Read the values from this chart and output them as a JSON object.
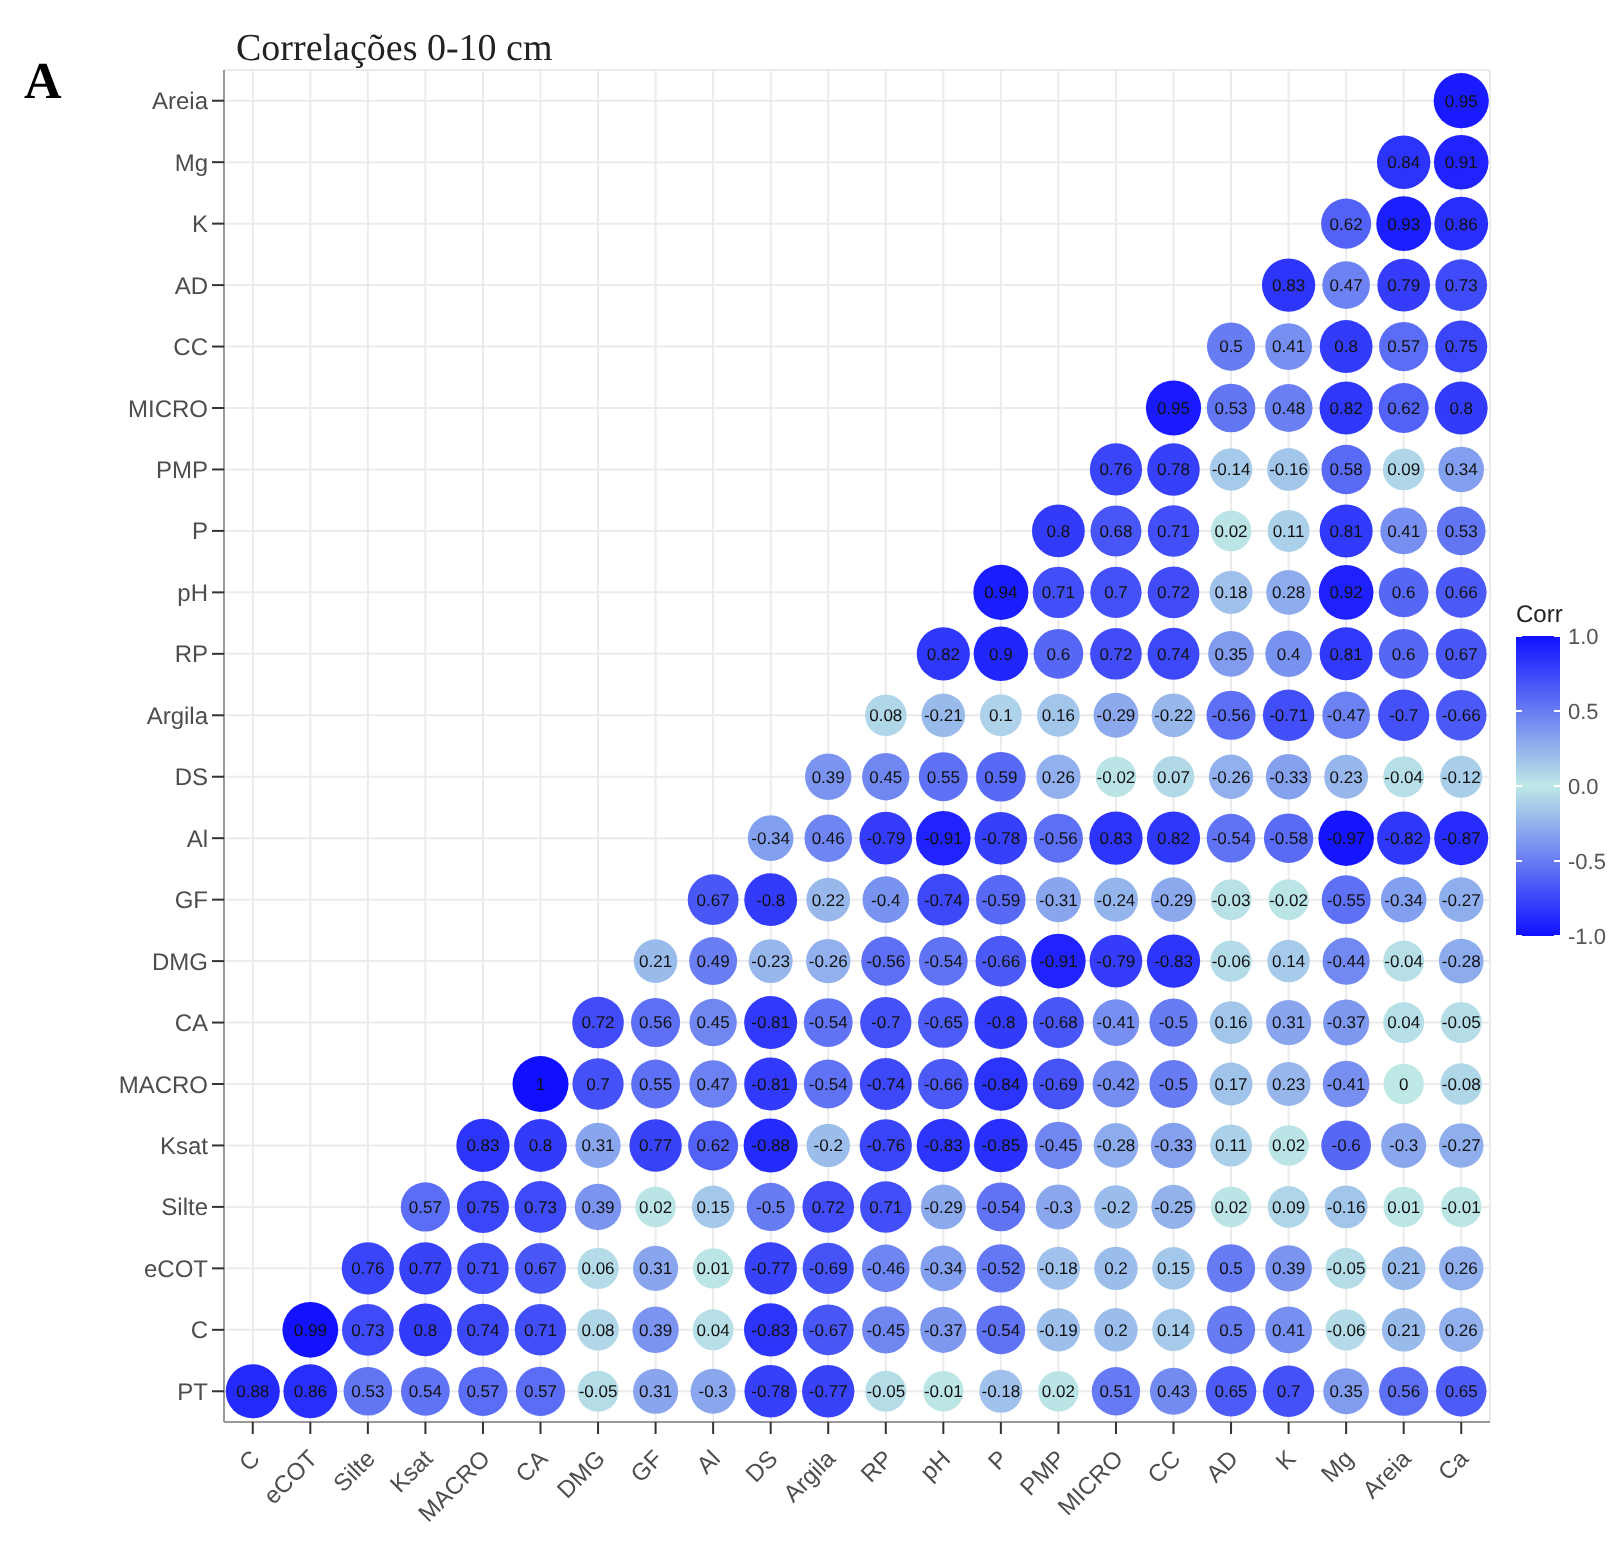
{
  "chart_data": {
    "type": "heatmap",
    "title": "Correlações 0-10 cm",
    "annotations": [
      "A"
    ],
    "clabel": "Corr",
    "grid": true,
    "data_labels": true,
    "categories": [
      "C",
      "eCOT",
      "Silte",
      "Ksat",
      "MACRO",
      "CA",
      "DMG",
      "GF",
      "Al",
      "DS",
      "Argila",
      "RP",
      "pH",
      "P",
      "PMP",
      "MICRO",
      "CC",
      "AD",
      "K",
      "Mg",
      "Areia",
      "Ca"
    ],
    "y_categories": [
      "Areia",
      "Mg",
      "K",
      "AD",
      "CC",
      "MICRO",
      "PMP",
      "P",
      "pH",
      "RP",
      "Argila",
      "DS",
      "Al",
      "GF",
      "DMG",
      "CA",
      "MACRO",
      "Ksat",
      "Silte",
      "eCOT",
      "C",
      "PT"
    ],
    "clim": [
      -1,
      1
    ],
    "cticks": [
      {
        "value": -1,
        "label": "-1.0"
      },
      {
        "value": -0.5,
        "label": "-0.5"
      },
      {
        "value": 0,
        "label": "0.0"
      },
      {
        "value": 0.5,
        "label": "0.5"
      },
      {
        "value": 1,
        "label": "1.0"
      }
    ],
    "cells": [
      [
        null,
        null,
        null,
        null,
        null,
        null,
        null,
        null,
        null,
        null,
        null,
        null,
        null,
        null,
        null,
        null,
        null,
        null,
        null,
        null,
        null,
        0.95
      ],
      [
        null,
        null,
        null,
        null,
        null,
        null,
        null,
        null,
        null,
        null,
        null,
        null,
        null,
        null,
        null,
        null,
        null,
        null,
        null,
        null,
        0.84,
        0.91
      ],
      [
        null,
        null,
        null,
        null,
        null,
        null,
        null,
        null,
        null,
        null,
        null,
        null,
        null,
        null,
        null,
        null,
        null,
        null,
        null,
        0.62,
        0.93,
        0.86
      ],
      [
        null,
        null,
        null,
        null,
        null,
        null,
        null,
        null,
        null,
        null,
        null,
        null,
        null,
        null,
        null,
        null,
        null,
        null,
        0.83,
        0.47,
        0.79,
        0.73
      ],
      [
        null,
        null,
        null,
        null,
        null,
        null,
        null,
        null,
        null,
        null,
        null,
        null,
        null,
        null,
        null,
        null,
        null,
        0.5,
        0.41,
        0.8,
        0.57,
        0.75
      ],
      [
        null,
        null,
        null,
        null,
        null,
        null,
        null,
        null,
        null,
        null,
        null,
        null,
        null,
        null,
        null,
        null,
        0.95,
        0.53,
        0.48,
        0.82,
        0.62,
        0.8
      ],
      [
        null,
        null,
        null,
        null,
        null,
        null,
        null,
        null,
        null,
        null,
        null,
        null,
        null,
        null,
        null,
        0.76,
        0.78,
        -0.14,
        -0.16,
        0.58,
        0.09,
        0.34
      ],
      [
        null,
        null,
        null,
        null,
        null,
        null,
        null,
        null,
        null,
        null,
        null,
        null,
        null,
        null,
        0.8,
        0.68,
        0.71,
        0.02,
        0.11,
        0.81,
        0.41,
        0.53
      ],
      [
        null,
        null,
        null,
        null,
        null,
        null,
        null,
        null,
        null,
        null,
        null,
        null,
        null,
        0.94,
        0.71,
        0.7,
        0.72,
        0.18,
        0.28,
        0.92,
        0.6,
        0.66
      ],
      [
        null,
        null,
        null,
        null,
        null,
        null,
        null,
        null,
        null,
        null,
        null,
        null,
        0.82,
        0.9,
        0.6,
        0.72,
        0.74,
        0.35,
        0.4,
        0.81,
        0.6,
        0.67
      ],
      [
        null,
        null,
        null,
        null,
        null,
        null,
        null,
        null,
        null,
        null,
        null,
        0.08,
        -0.21,
        0.1,
        0.16,
        -0.29,
        -0.22,
        -0.56,
        -0.71,
        -0.47,
        -0.7,
        -0.66
      ],
      [
        null,
        null,
        null,
        null,
        null,
        null,
        null,
        null,
        null,
        null,
        0.39,
        0.45,
        0.55,
        0.59,
        0.26,
        -0.02,
        0.07,
        -0.26,
        -0.33,
        0.23,
        -0.04,
        -0.12
      ],
      [
        null,
        null,
        null,
        null,
        null,
        null,
        null,
        null,
        null,
        -0.34,
        0.46,
        -0.79,
        -0.91,
        -0.78,
        -0.56,
        0.83,
        0.82,
        -0.54,
        -0.58,
        -0.97,
        -0.82,
        -0.87
      ],
      [
        null,
        null,
        null,
        null,
        null,
        null,
        null,
        null,
        0.67,
        -0.8,
        0.22,
        -0.4,
        -0.74,
        -0.59,
        -0.31,
        -0.24,
        -0.29,
        -0.03,
        -0.02,
        -0.55,
        -0.34,
        -0.27
      ],
      [
        null,
        null,
        null,
        null,
        null,
        null,
        null,
        0.21,
        0.49,
        -0.23,
        -0.26,
        -0.56,
        -0.54,
        -0.66,
        -0.91,
        -0.79,
        -0.83,
        -0.06,
        0.14,
        -0.44,
        -0.04,
        -0.28
      ],
      [
        null,
        null,
        null,
        null,
        null,
        null,
        0.72,
        0.56,
        0.45,
        -0.81,
        -0.54,
        -0.7,
        -0.65,
        -0.8,
        -0.68,
        -0.41,
        -0.5,
        0.16,
        0.31,
        -0.37,
        0.04,
        -0.05
      ],
      [
        null,
        null,
        null,
        null,
        null,
        1,
        0.7,
        0.55,
        0.47,
        -0.81,
        -0.54,
        -0.74,
        -0.66,
        -0.84,
        -0.69,
        -0.42,
        -0.5,
        0.17,
        0.23,
        -0.41,
        0,
        -0.08
      ],
      [
        null,
        null,
        null,
        null,
        0.83,
        0.8,
        0.31,
        0.77,
        0.62,
        -0.88,
        -0.2,
        -0.76,
        -0.83,
        -0.85,
        -0.45,
        -0.28,
        -0.33,
        0.11,
        0.02,
        -0.6,
        -0.3,
        -0.27
      ],
      [
        null,
        null,
        null,
        0.57,
        0.75,
        0.73,
        0.39,
        0.02,
        0.15,
        -0.5,
        0.72,
        0.71,
        -0.29,
        -0.54,
        -0.3,
        -0.2,
        -0.25,
        0.02,
        0.09,
        -0.16,
        0.01,
        -0.01
      ],
      [
        null,
        null,
        0.76,
        0.77,
        0.71,
        0.67,
        0.06,
        0.31,
        0.01,
        -0.77,
        -0.69,
        -0.46,
        -0.34,
        -0.52,
        -0.18,
        0.2,
        0.15,
        0.5,
        0.39,
        -0.05,
        0.21,
        0.26
      ],
      [
        null,
        0.99,
        0.73,
        0.8,
        0.74,
        0.71,
        0.08,
        0.39,
        0.04,
        -0.83,
        -0.67,
        -0.45,
        -0.37,
        -0.54,
        -0.19,
        0.2,
        0.14,
        0.5,
        0.41,
        -0.06,
        0.21,
        0.26
      ],
      [
        0.88,
        0.86,
        0.53,
        0.54,
        0.57,
        0.57,
        -0.05,
        0.31,
        -0.3,
        -0.78,
        -0.77,
        -0.05,
        -0.01,
        -0.18,
        0.02,
        0.51,
        0.43,
        0.65,
        0.7,
        0.35,
        0.56,
        0.65
      ]
    ]
  }
}
